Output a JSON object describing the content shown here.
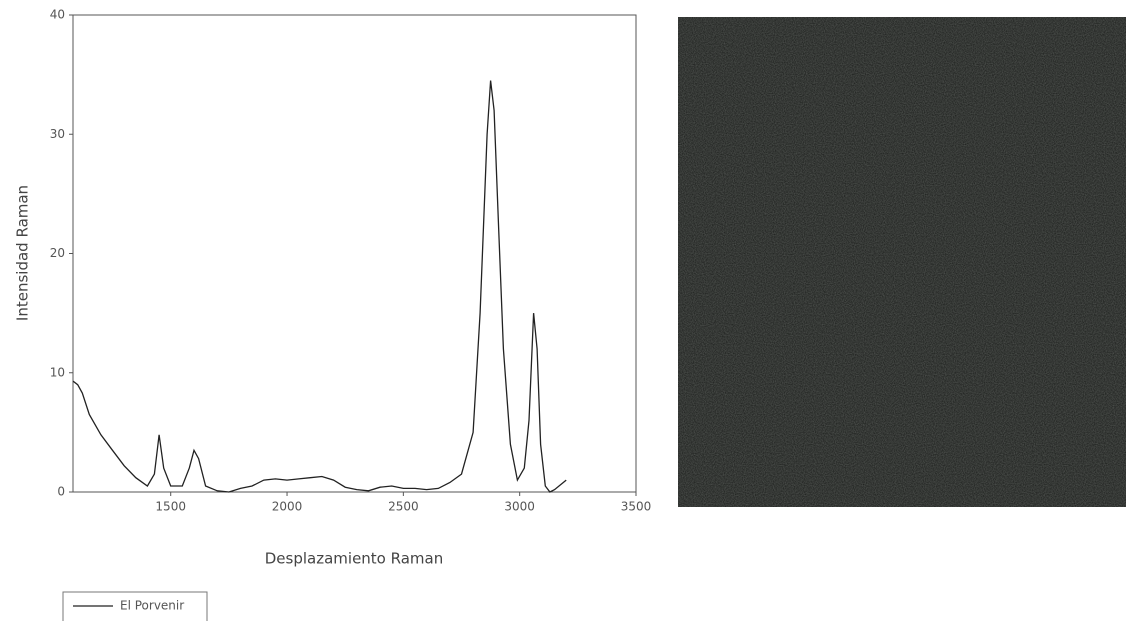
{
  "chart_data": {
    "type": "line",
    "x_label": "Desplazamiento Raman",
    "y_label": "Intensidad Raman",
    "x": [
      1080,
      1100,
      1120,
      1150,
      1200,
      1250,
      1300,
      1350,
      1400,
      1430,
      1450,
      1470,
      1500,
      1550,
      1580,
      1600,
      1620,
      1650,
      1700,
      1750,
      1800,
      1850,
      1900,
      1950,
      2000,
      2050,
      2100,
      2150,
      2200,
      2250,
      2300,
      2350,
      2400,
      2450,
      2500,
      2550,
      2600,
      2650,
      2700,
      2750,
      2800,
      2830,
      2860,
      2875,
      2890,
      2910,
      2930,
      2960,
      2990,
      3020,
      3040,
      3060,
      3075,
      3090,
      3110,
      3130,
      3150,
      3200
    ],
    "series": [
      {
        "name": "El Porvenir",
        "color": "#222222",
        "values": [
          9.3,
          9.0,
          8.3,
          6.5,
          4.8,
          3.5,
          2.2,
          1.2,
          0.5,
          1.5,
          4.8,
          2.0,
          0.5,
          0.5,
          2.0,
          3.5,
          2.8,
          0.5,
          0.1,
          0.0,
          0.3,
          0.5,
          1.0,
          1.1,
          1.0,
          1.1,
          1.2,
          1.3,
          1.0,
          0.4,
          0.2,
          0.1,
          0.4,
          0.5,
          0.3,
          0.3,
          0.2,
          0.3,
          0.8,
          1.5,
          5.0,
          15.0,
          30.0,
          34.5,
          32.0,
          22.0,
          12.0,
          4.0,
          1.0,
          2.0,
          6.0,
          15.0,
          12.0,
          4.0,
          0.5,
          0.0,
          0.2,
          1.0
        ]
      }
    ],
    "xlim": [
      1080,
      3500
    ],
    "xticks": [
      1500,
      2000,
      2500,
      3000,
      3500
    ],
    "ylim": [
      0,
      40
    ],
    "yticks": [
      0,
      10,
      20,
      30,
      40
    ],
    "grid": false,
    "legend": "bottom-left"
  }
}
